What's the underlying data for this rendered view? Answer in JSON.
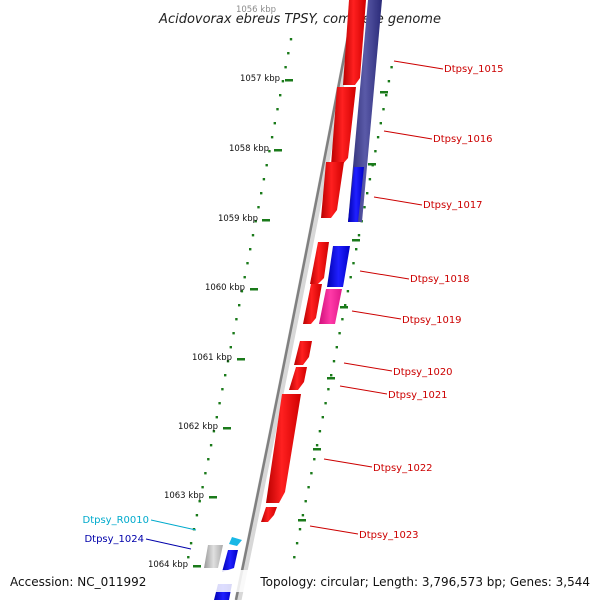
{
  "title": "Acidovorax ebreus TPSY, complete genome",
  "footer": {
    "accession": "Accession: NC_011992",
    "summary": "Topology: circular; Length: 3,796,573 bp; Genes: 3,544"
  },
  "colors": {
    "forward_gene": "#ff0000",
    "reverse_gene": "#0000ff",
    "pseudo_gene": "#ff1493",
    "rna_gene": "#c0c0c0",
    "overlap_band": "#3a3a8a",
    "ruler_dots": "#1a7a1a",
    "backbone": "#888888",
    "label_forward": "#cc0000",
    "label_reverse": "#0000aa",
    "label_rna": "#00aacc"
  },
  "ruler": {
    "ticks": [
      {
        "label": "1056 kbp"
      },
      {
        "label": "1057 kbp"
      },
      {
        "label": "1058 kbp"
      },
      {
        "label": "1059 kbp"
      },
      {
        "label": "1060 kbp"
      },
      {
        "label": "1061 kbp"
      },
      {
        "label": "1062 kbp"
      },
      {
        "label": "1063 kbp"
      },
      {
        "label": "1064 kbp"
      }
    ]
  },
  "genes": [
    {
      "label": "Dtpsy_1015",
      "strand": "forward"
    },
    {
      "label": "Dtpsy_1016",
      "strand": "forward"
    },
    {
      "label": "Dtpsy_1017",
      "strand": "reverse"
    },
    {
      "label": "Dtpsy_1018",
      "strand": "reverse"
    },
    {
      "label": "Dtpsy_1019",
      "strand": "pseudo"
    },
    {
      "label": "Dtpsy_1020",
      "strand": "forward"
    },
    {
      "label": "Dtpsy_1021",
      "strand": "forward"
    },
    {
      "label": "Dtpsy_1022",
      "strand": "forward"
    },
    {
      "label": "Dtpsy_1023",
      "strand": "forward"
    },
    {
      "label": "Dtpsy_R0010",
      "strand": "rna"
    },
    {
      "label": "Dtpsy_1024",
      "strand": "reverse"
    }
  ]
}
